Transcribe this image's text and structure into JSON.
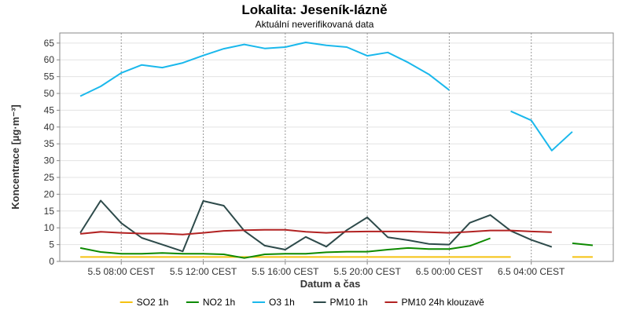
{
  "chart_data": {
    "type": "line",
    "title": "Lokalita: Jeseník-lázně",
    "subtitle": "Aktuální neverifikovaná data",
    "xlabel": "Datum a čas",
    "ylabel": "Koncentrace [µg·m⁻³]",
    "ylim": [
      0,
      68
    ],
    "yticks": [
      0,
      5,
      10,
      15,
      20,
      25,
      30,
      35,
      40,
      45,
      50,
      55,
      60,
      65
    ],
    "xlim": [
      "5.5 05:00",
      "6.5 08:00"
    ],
    "x": [
      "5.5 06:00",
      "5.5 07:00",
      "5.5 08:00",
      "5.5 09:00",
      "5.5 10:00",
      "5.5 11:00",
      "5.5 12:00",
      "5.5 13:00",
      "5.5 14:00",
      "5.5 15:00",
      "5.5 16:00",
      "5.5 17:00",
      "5.5 18:00",
      "5.5 19:00",
      "5.5 20:00",
      "5.5 21:00",
      "5.5 22:00",
      "5.5 23:00",
      "6.5 00:00",
      "6.5 01:00",
      "6.5 02:00",
      "6.5 03:00",
      "6.5 04:00",
      "6.5 05:00",
      "6.5 06:00",
      "6.5 07:00"
    ],
    "xticks": [
      {
        "at": 2,
        "label": "5.5 08:00 CEST"
      },
      {
        "at": 6,
        "label": "5.5 12:00 CEST"
      },
      {
        "at": 10,
        "label": "5.5 16:00 CEST"
      },
      {
        "at": 14,
        "label": "5.5 20:00 CEST"
      },
      {
        "at": 18,
        "label": "6.5 00:00 CEST"
      },
      {
        "at": 22,
        "label": "6.5 04:00 CEST"
      }
    ],
    "grid": true,
    "legend_position": "bottom",
    "series": [
      {
        "name": "SO2 1h",
        "color": "#f5c211",
        "values": [
          1.3,
          1.3,
          1.3,
          1.3,
          1.3,
          1.3,
          1.3,
          1.3,
          1.3,
          1.3,
          1.3,
          1.3,
          1.3,
          1.3,
          1.3,
          1.3,
          1.3,
          1.3,
          1.3,
          1.3,
          1.3,
          1.3,
          null,
          null,
          1.3,
          1.3
        ]
      },
      {
        "name": "NO2 1h",
        "color": "#0d8a00",
        "values": [
          4.0,
          2.8,
          2.3,
          2.3,
          2.5,
          2.3,
          2.3,
          2.1,
          1.0,
          2.1,
          2.3,
          2.3,
          2.7,
          2.9,
          2.9,
          3.5,
          4.0,
          3.7,
          3.7,
          4.6,
          6.9,
          null,
          null,
          null,
          5.4,
          4.8
        ]
      },
      {
        "name": "O3 1h",
        "color": "#1ab8ec",
        "values": [
          49.2,
          52.1,
          56.1,
          58.5,
          57.7,
          59.1,
          61.3,
          63.3,
          64.6,
          63.4,
          63.8,
          65.2,
          64.3,
          63.8,
          61.2,
          62.2,
          59.2,
          55.7,
          51.0,
          null,
          null,
          44.7,
          42.0,
          33.0,
          38.6,
          null
        ]
      },
      {
        "name": "PM10 1h",
        "color": "#2d4a4a",
        "values": [
          8.5,
          18.1,
          11.4,
          7.0,
          5.0,
          3.0,
          18.0,
          16.6,
          9.1,
          4.7,
          3.5,
          7.3,
          4.4,
          9.3,
          13.1,
          7.2,
          6.3,
          5.2,
          5.0,
          11.5,
          13.8,
          9.1,
          6.4,
          4.3,
          null,
          null
        ]
      },
      {
        "name": "PM10 24h klouzavě",
        "color": "#b22222",
        "values": [
          8.2,
          8.8,
          8.5,
          8.3,
          8.3,
          8.0,
          8.5,
          9.1,
          9.3,
          9.4,
          9.4,
          8.8,
          8.5,
          8.8,
          8.9,
          8.9,
          8.9,
          8.7,
          8.5,
          8.8,
          9.2,
          9.2,
          8.9,
          8.7,
          null,
          null
        ]
      }
    ]
  }
}
